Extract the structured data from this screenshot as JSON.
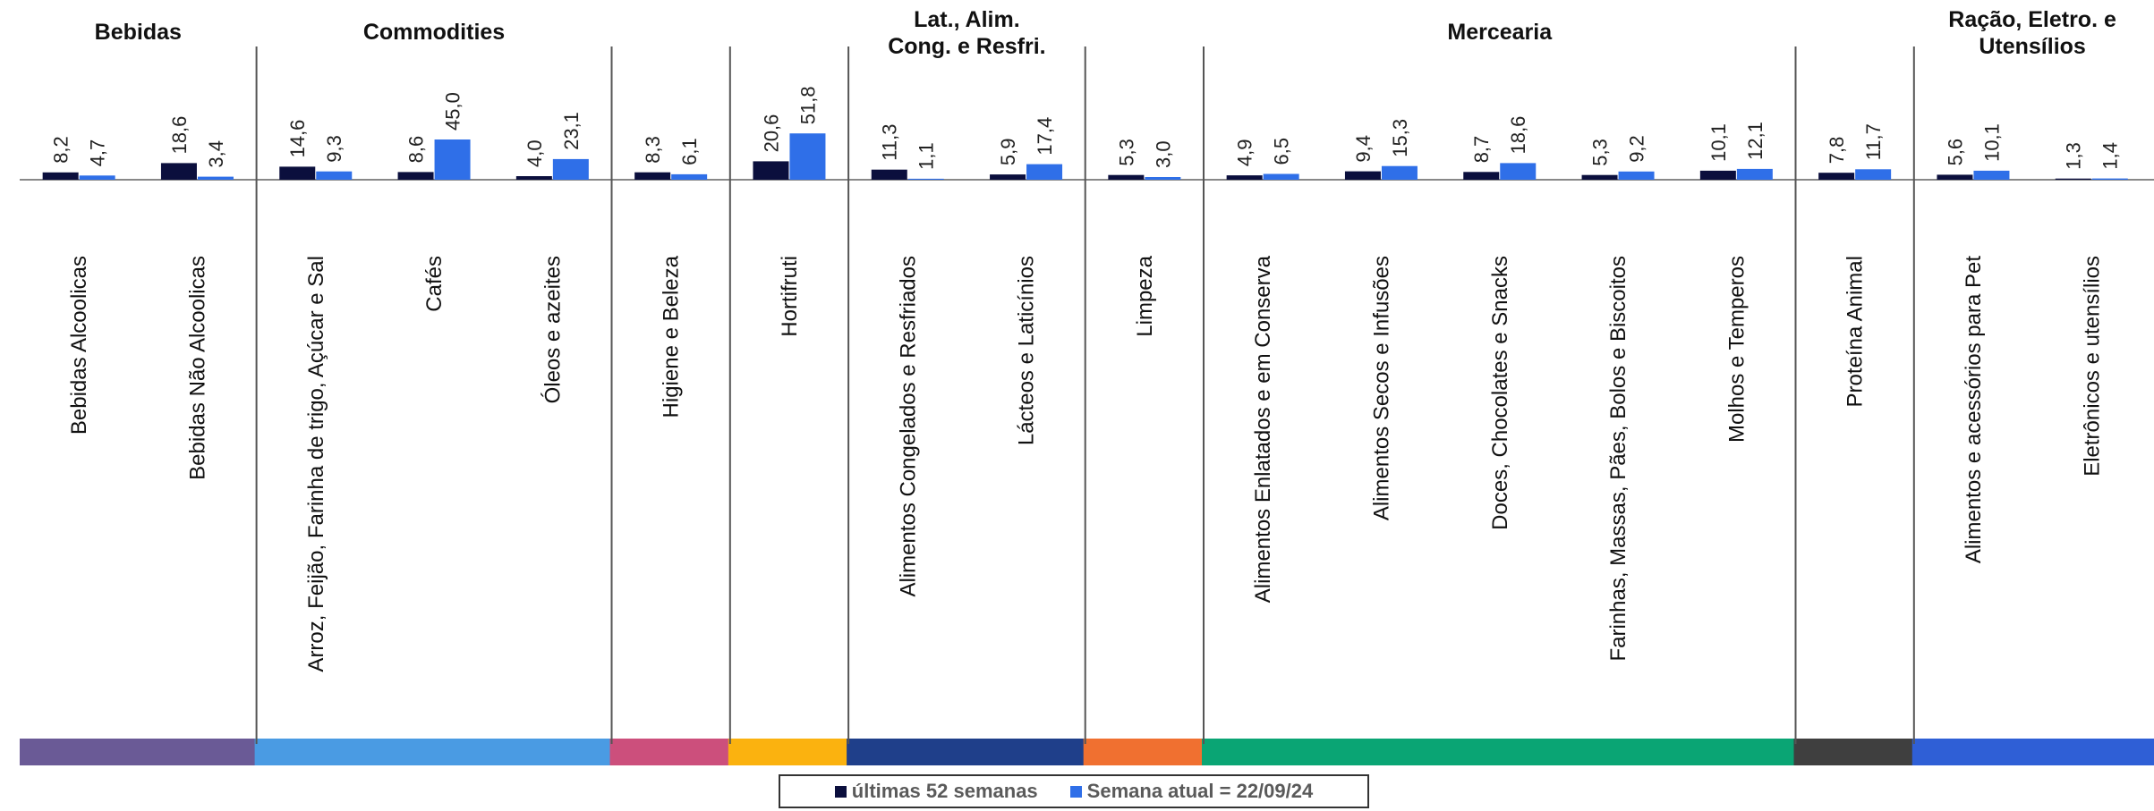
{
  "chart_data": {
    "type": "bar",
    "series": [
      {
        "name": "últimas 52 semanas",
        "color": "#0b0f3d"
      },
      {
        "name": "Semana atual = 22/09/24",
        "color": "#2f6fe8"
      }
    ],
    "groups": [
      {
        "title": [
          "Bebidas"
        ],
        "color": "#6a5a96",
        "categories": [
          {
            "label": "Bebidas Alcoolicas",
            "v1": 8.2,
            "v1_label": "8,2",
            "v2": 4.7,
            "v2_label": "4,7"
          },
          {
            "label": "Bebidas Não Alcoolicas",
            "v1": 18.6,
            "v1_label": "18,6",
            "v2": 3.4,
            "v2_label": "3,4"
          }
        ]
      },
      {
        "title": [
          "Commodities"
        ],
        "color": "#4a9be3",
        "categories": [
          {
            "label": "Arroz, Feijão, Farinha de trigo, Açúcar e Sal",
            "v1": 14.6,
            "v1_label": "14,6",
            "v2": 9.3,
            "v2_label": "9,3"
          },
          {
            "label": "Cafés",
            "v1": 8.6,
            "v1_label": "8,6",
            "v2": 45.0,
            "v2_label": "45,0"
          },
          {
            "label": "Óleos e azeites",
            "v1": 4.0,
            "v1_label": "4,0",
            "v2": 23.1,
            "v2_label": "23,1"
          }
        ]
      },
      {
        "title": [],
        "color": "#cc4f7c",
        "categories": [
          {
            "label": "Higiene e Beleza",
            "v1": 8.3,
            "v1_label": "8,3",
            "v2": 6.1,
            "v2_label": "6,1"
          }
        ]
      },
      {
        "title": [],
        "color": "#fbb20f",
        "categories": [
          {
            "label": "Hortifruti",
            "v1": 20.6,
            "v1_label": "20,6",
            "v2": 51.8,
            "v2_label": "51,8"
          }
        ]
      },
      {
        "title": [
          "Lat., Alim.",
          "Cong. e Resfri."
        ],
        "color": "#1f3f8a",
        "categories": [
          {
            "label": "Alimentos Congelados e Resfriados",
            "v1": 11.3,
            "v1_label": "11,3",
            "v2": 1.1,
            "v2_label": "1,1"
          },
          {
            "label": "Lácteos e Laticínios",
            "v1": 5.9,
            "v1_label": "5,9",
            "v2": 17.4,
            "v2_label": "17,4"
          }
        ]
      },
      {
        "title": [],
        "color": "#f07030",
        "categories": [
          {
            "label": "Limpeza",
            "v1": 5.3,
            "v1_label": "5,3",
            "v2": 3.0,
            "v2_label": "3,0"
          }
        ]
      },
      {
        "title": [
          "Mercearia"
        ],
        "color": "#0aa574",
        "categories": [
          {
            "label": "Alimentos Enlatados e em Conserva",
            "v1": 4.9,
            "v1_label": "4,9",
            "v2": 6.5,
            "v2_label": "6,5"
          },
          {
            "label": "Alimentos Secos e Infusões",
            "v1": 9.4,
            "v1_label": "9,4",
            "v2": 15.3,
            "v2_label": "15,3"
          },
          {
            "label": "Doces, Chocolates e Snacks",
            "v1": 8.7,
            "v1_label": "8,7",
            "v2": 18.6,
            "v2_label": "18,6"
          },
          {
            "label": "Farinhas, Massas, Pães, Bolos e Biscoitos",
            "v1": 5.3,
            "v1_label": "5,3",
            "v2": 9.2,
            "v2_label": "9,2"
          },
          {
            "label": "Molhos e Temperos",
            "v1": 10.1,
            "v1_label": "10,1",
            "v2": 12.1,
            "v2_label": "12,1"
          }
        ]
      },
      {
        "title": [],
        "color": "#3f3f3f",
        "categories": [
          {
            "label": "Proteína Animal",
            "v1": 7.8,
            "v1_label": "7,8",
            "v2": 11.7,
            "v2_label": "11,7"
          }
        ]
      },
      {
        "title": [
          "Ração, Eletro. e",
          "Utensílios"
        ],
        "color": "#2f5fd6",
        "categories": [
          {
            "label": "Alimentos e acessórios para Pet",
            "v1": 5.6,
            "v1_label": "5,6",
            "v2": 10.1,
            "v2_label": "10,1"
          },
          {
            "label": "Eletrônicos e utensílios",
            "v1": 1.3,
            "v1_label": "1,3",
            "v2": 1.4,
            "v2_label": "1,4"
          }
        ]
      }
    ],
    "ylim": [
      0,
      60
    ],
    "grid": false,
    "legend_position": "bottom-center"
  }
}
